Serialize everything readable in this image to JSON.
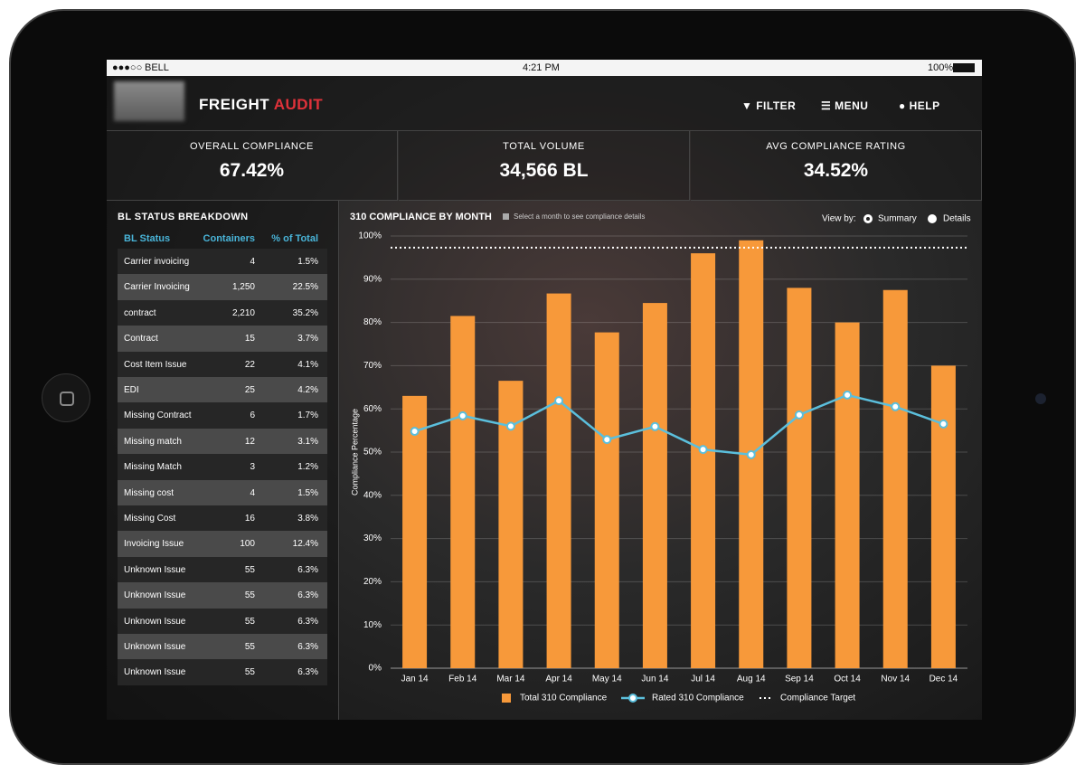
{
  "status_bar": {
    "carrier": "BELL",
    "time": "4:21 PM",
    "battery": "100%"
  },
  "header": {
    "brand_first": "FREIGHT",
    "brand_second": "AUDIT",
    "nav": [
      "FILTER",
      "MENU",
      "HELP"
    ]
  },
  "kpis": [
    {
      "label": "OVERALL COMPLIANCE",
      "value": "67.42%"
    },
    {
      "label": "TOTAL VOLUME",
      "value": "34,566 BL"
    },
    {
      "label": "AVG COMPLIANCE RATING",
      "value": "34.52%"
    }
  ],
  "table": {
    "title": "BL STATUS BREAKDOWN",
    "columns": [
      "BL Status",
      "Containers",
      "% of Total"
    ],
    "rows": [
      [
        "Carrier invoicing",
        "4",
        "1.5%"
      ],
      [
        "Carrier Invoicing",
        "1,250",
        "22.5%"
      ],
      [
        "contract",
        "2,210",
        "35.2%"
      ],
      [
        "Contract",
        "15",
        "3.7%"
      ],
      [
        "Cost Item Issue",
        "22",
        "4.1%"
      ],
      [
        "EDI",
        "25",
        "4.2%"
      ],
      [
        "Missing Contract",
        "6",
        "1.7%"
      ],
      [
        "Missing match",
        "12",
        "3.1%"
      ],
      [
        "Missing Match",
        "3",
        "1.2%"
      ],
      [
        "Missing cost",
        "4",
        "1.5%"
      ],
      [
        "Missing Cost",
        "16",
        "3.8%"
      ],
      [
        "Invoicing Issue",
        "100",
        "12.4%"
      ],
      [
        "Unknown Issue",
        "55",
        "6.3%"
      ],
      [
        "Unknown Issue",
        "55",
        "6.3%"
      ],
      [
        "Unknown Issue",
        "55",
        "6.3%"
      ],
      [
        "Unknown Issue",
        "55",
        "6.3%"
      ],
      [
        "Unknown Issue",
        "55",
        "6.3%"
      ]
    ]
  },
  "chart_data": {
    "type": "bar",
    "title": "310 COMPLIANCE BY MONTH",
    "hint": "Select a month to see compliance details",
    "view_by_label": "View by:",
    "view_options": [
      "Summary",
      "Details"
    ],
    "y_label": "Compliance Percentage",
    "categories": [
      "Jan 14",
      "Feb 14",
      "Mar 14",
      "Apr 14",
      "May 14",
      "Jun 14",
      "Jul 14",
      "Aug 14",
      "Sep 14",
      "Oct 14",
      "Nov 14",
      "Dec 14"
    ],
    "series": [
      {
        "name": "Total 310 Compliance",
        "type": "bar",
        "color": "#f7993a",
        "values": [
          63,
          81.5,
          66.5,
          86.7,
          77.7,
          84.5,
          96,
          99,
          88,
          80,
          87.5,
          70
        ]
      },
      {
        "name": "Rated 310 Compliance",
        "type": "line",
        "color": "#5bbfdc",
        "values": [
          54.8,
          58.4,
          56,
          61.9,
          52.9,
          55.9,
          50.6,
          49.4,
          58.6,
          63.2,
          60.5,
          56.5
        ]
      }
    ],
    "target": {
      "name": "Compliance Target",
      "value": 97.3,
      "color": "#ffffff"
    },
    "ylim": [
      0,
      100
    ],
    "yticks": [
      {
        "value": 0,
        "label": "0%"
      },
      {
        "value": 10,
        "label": "10%"
      },
      {
        "value": 20,
        "label": "20%"
      },
      {
        "value": 30,
        "label": "30%"
      },
      {
        "value": 40,
        "label": "40%"
      },
      {
        "value": 50,
        "label": "50%"
      },
      {
        "value": 60,
        "label": "60%"
      },
      {
        "value": 70,
        "label": "70%"
      },
      {
        "value": 80,
        "label": "80%"
      },
      {
        "value": 90,
        "label": "90%"
      },
      {
        "value": 100,
        "label": "100%"
      }
    ],
    "grid": true
  }
}
